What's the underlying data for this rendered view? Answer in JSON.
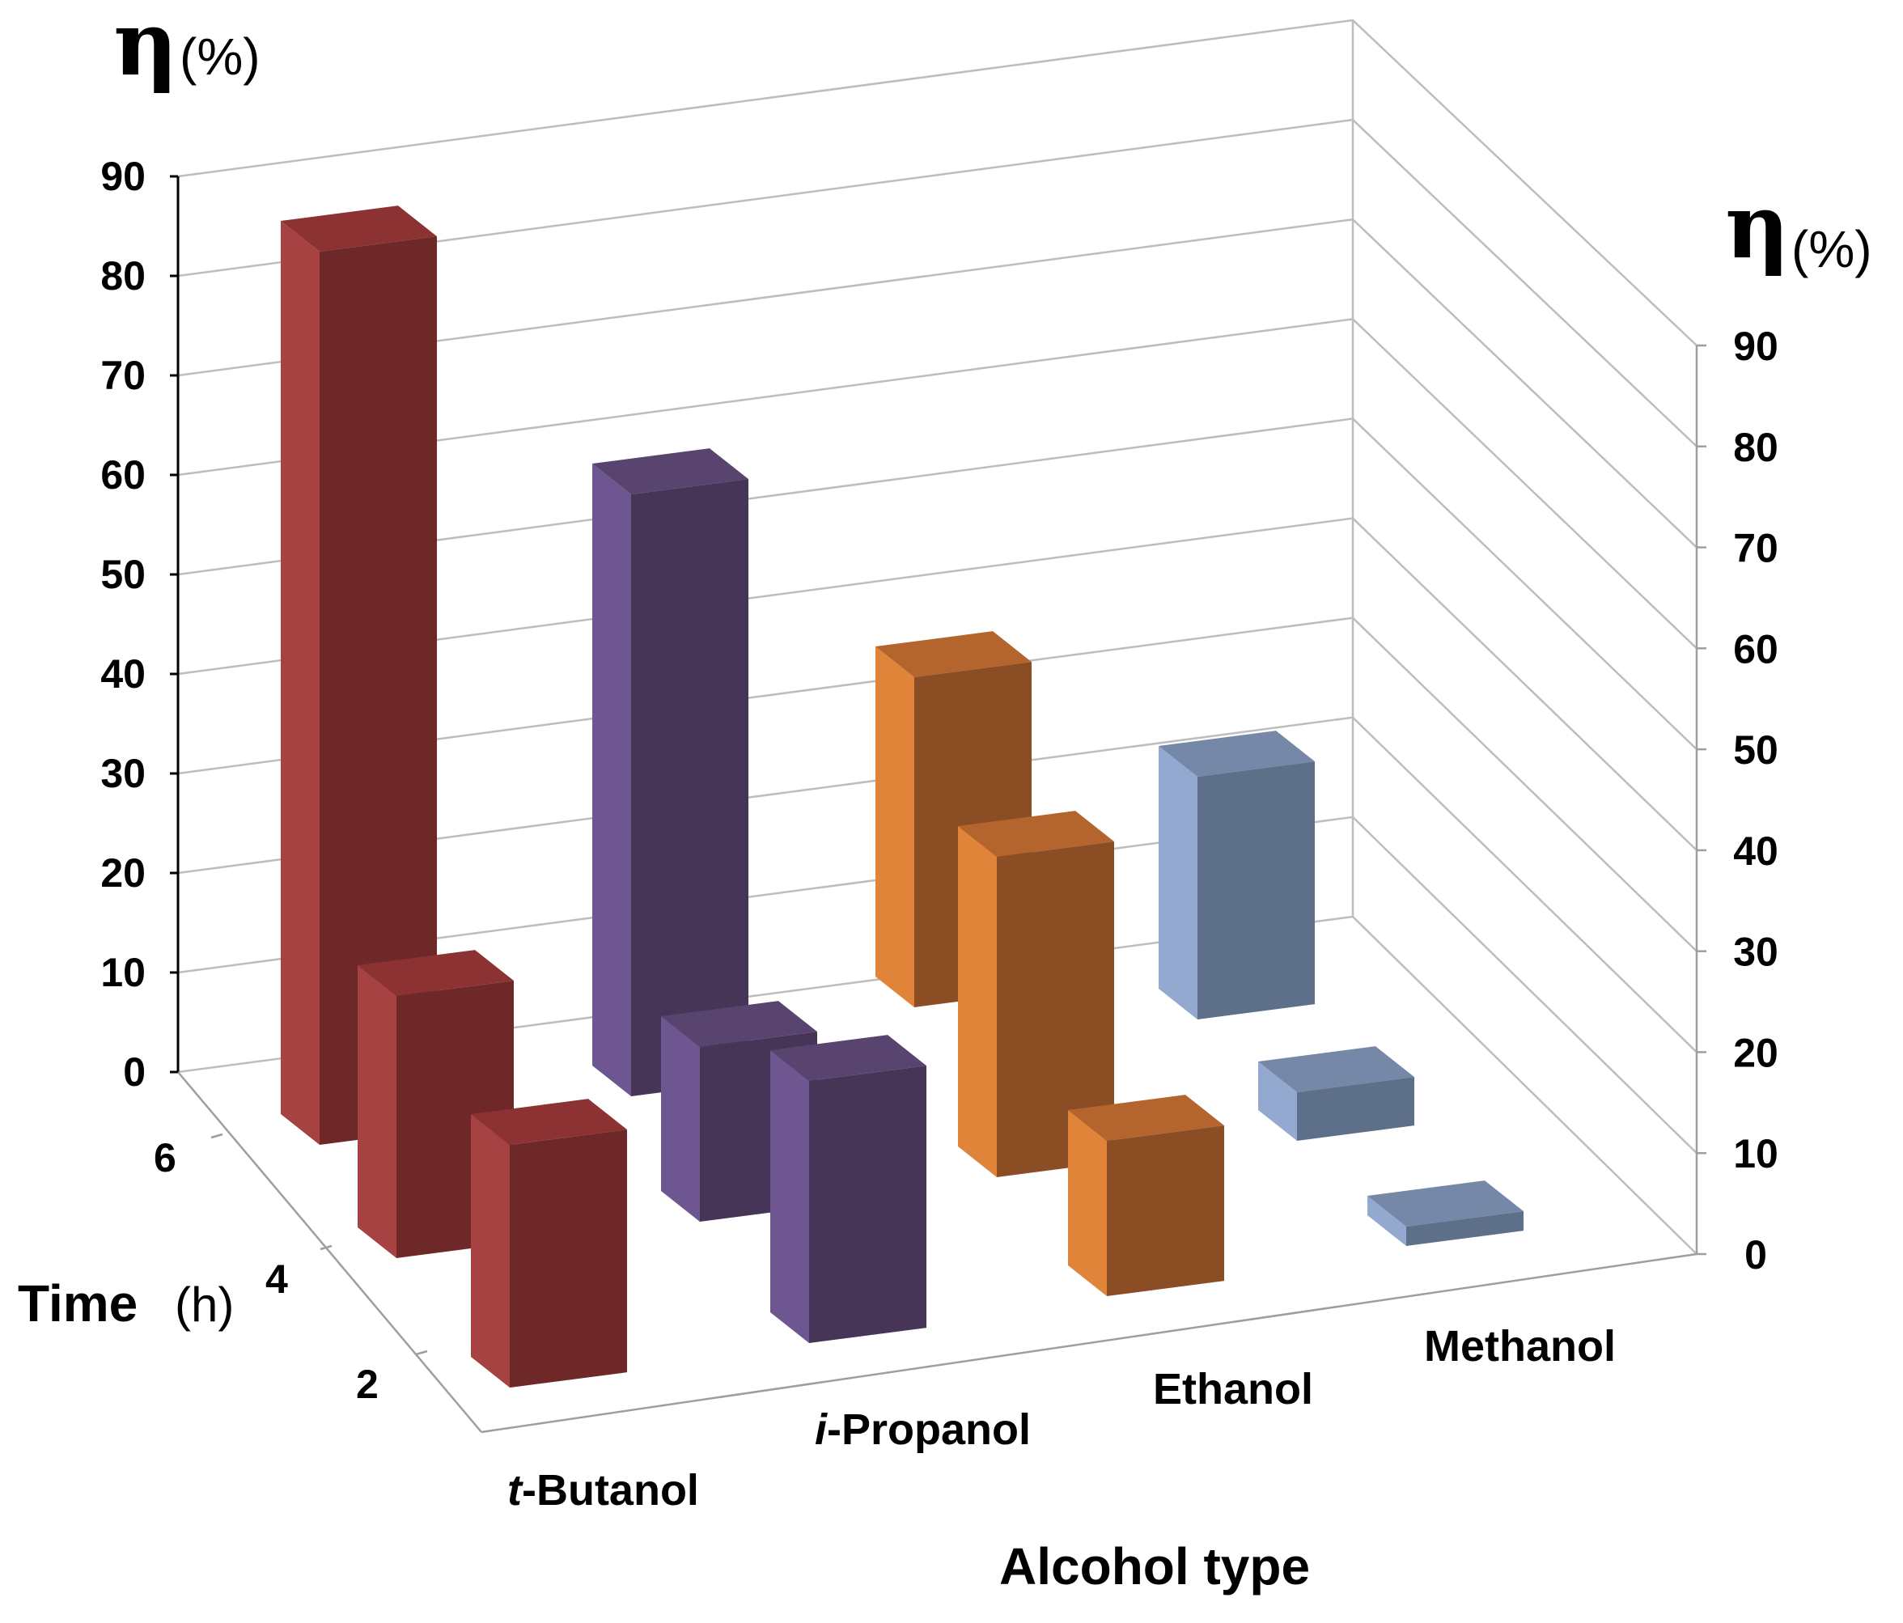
{
  "chart_data": {
    "type": "bar3d",
    "z_axis_title": "η",
    "z_axis_unit": "(%)",
    "z_ticks": [
      "0",
      "10",
      "20",
      "30",
      "40",
      "50",
      "60",
      "70",
      "80",
      "90"
    ],
    "zlim": [
      0,
      90
    ],
    "x_axis_title": "Alcohol type",
    "y_axis_title": "Time",
    "y_axis_unit": "(h)",
    "categories": [
      {
        "prefix": "t",
        "name": "-Butanol"
      },
      {
        "prefix": "i",
        "name": "-Propanol"
      },
      {
        "prefix": "",
        "name": "Ethanol"
      },
      {
        "prefix": "",
        "name": "Methanol"
      }
    ],
    "time_labels": [
      "2",
      "4",
      "6"
    ],
    "series": [
      {
        "name": "6",
        "values": [
          92,
          62,
          34,
          25
        ]
      },
      {
        "name": "4",
        "values": [
          27,
          18,
          33,
          5
        ]
      },
      {
        "name": "2",
        "values": [
          25,
          27,
          16,
          2
        ]
      }
    ],
    "colors": [
      {
        "front": "#6e2828",
        "side": "#a64242",
        "top": "#8c3232"
      },
      {
        "front": "#473558",
        "side": "#6e5690",
        "top": "#59436f"
      },
      {
        "front": "#8b4e24",
        "side": "#e0843a",
        "top": "#b4652d"
      },
      {
        "front": "#5e6f8a",
        "side": "#93a9cf",
        "top": "#7688a8"
      }
    ]
  }
}
